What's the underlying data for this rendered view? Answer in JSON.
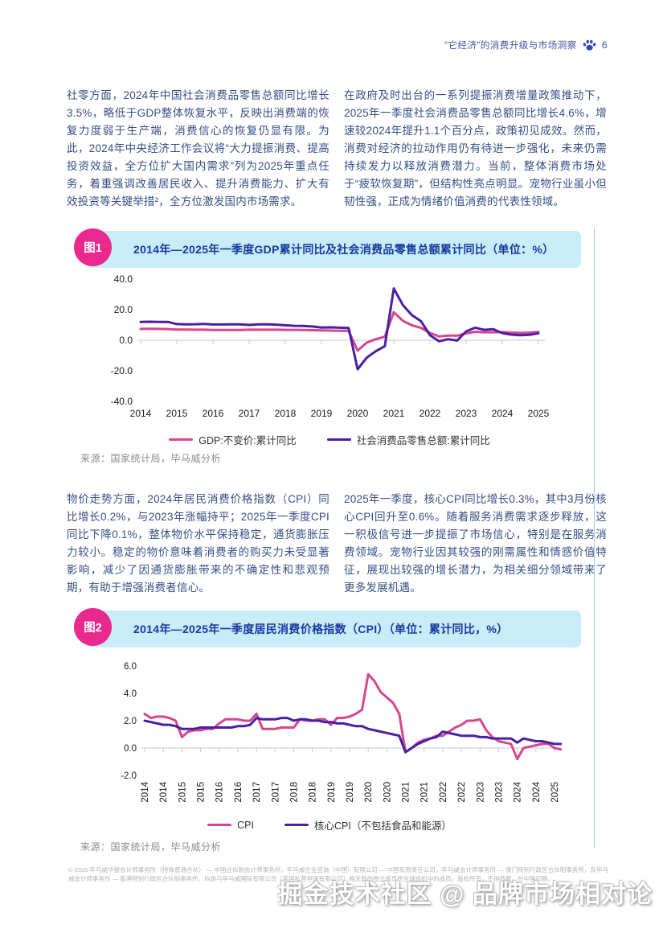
{
  "header": {
    "title": "“它经济”的消费升级与市场洞察",
    "page_number": "6"
  },
  "section1": {
    "left": "社零方面，2024年中国社会消费品零售总额同比增长3.5%，略低于GDP整体恢复水平，反映出消费端的恢复力度弱于生产端，消费信心的恢复仍显有限。为此，2024年中央经济工作会议将“大力提振消费、提高投资效益，全方位扩大国内需求”列为2025年重点任务，着重强调改善居民收入、提升消费能力、扩大有效投资等关键举措²，全方位激发国内市场需求。",
    "right": "在政府及时出台的一系列提振消费增量政策推动下，2025年一季度社会消费品零售总额同比增长4.6%，增速较2024年提升1.1个百分点，政策初见成效。然而，消费对经济的拉动作用仍有待进一步强化，未来仍需持续发力以释放消费潜力。当前，整体消费市场处于“疲软恢复期”，但结构性亮点明显。宠物行业虽小但韧性强，正成为情绪价值消费的代表性领域。"
  },
  "section2": {
    "left": "物价走势方面，2024年居民消费价格指数（CPI）同比增长0.2%，与2023年涨幅持平；2025年一季度CPI同比下降0.1%，整体物价水平保持稳定，通货膨胀压力较小。稳定的物价意味着消费者的购买力未受显著影响，减少了因通货膨胀带来的不确定性和悲观预期，有助于增强消费者信心。",
    "right": "2025年一季度，核心CPI同比增长0.3%，其中3月份核心CPI回升至0.6%。随着服务消费需求逐步释放，这一积极信号进一步提振了市场信心，特别是在服务消费领域。宠物行业因其较强的刚需属性和情感价值特征，展现出较强的增长潜力，为相关细分领域带来了更多发展机遇。"
  },
  "figure1": {
    "badge": "图1",
    "title": "2014年—2025年一季度GDP累计同比及社会消费品零售总额累计同比（单位：%）",
    "legend": [
      {
        "label": "GDP:不变价:累计同比"
      },
      {
        "label": "社会消费品零售总额:累计同比"
      }
    ],
    "source": "来源：国家统计局，毕马威分析"
  },
  "figure2": {
    "badge": "图2",
    "title": "2014年—2025年一季度居民消费价格指数（CPI）（单位：累计同比，%）",
    "legend": [
      {
        "label": "CPI"
      },
      {
        "label": "核心CPI（不包括食品和能源）"
      }
    ],
    "source": "来源：国家统计局，毕马威分析"
  },
  "footer": {
    "text": "© 2025 毕马威华振会计师事务所（特殊普通合伙） — 中国合伙制会计师事务所，毕马威企业咨询（中国）有限公司 — 中国有限责任公司，毕马威会计师事务所 — 澳门特别行政区合伙制事务所，及毕马威会计师事务所 — 香港特别行政区合伙制事务所，均是与毕马威国际有限公司（英国私营担保有限公司）相关联的独立成员所全球组织中的成员。版权所有，不得转载。在中国印刷。"
  },
  "watermark": "掘金技术社区 @ 品牌市场相对论",
  "colors": {
    "pink_line": "#d6468f",
    "purple_line": "#4a1fa3",
    "band_bg": "#c9edf8",
    "badge_pink": "#e9298e",
    "title_blue": "#17399e",
    "axis_gray": "#c9c9c9",
    "paw_blue": "#2b48c0"
  },
  "chart_data": [
    {
      "type": "line",
      "title": "2014年—2025年一季度GDP累计同比及社会消费品零售总额累计同比",
      "unit": "%",
      "x_start": 2014,
      "x_step": 0.25,
      "x_min": 2014,
      "x_max": 2025,
      "x_tick_values": [
        2014,
        2015,
        2016,
        2017,
        2018,
        2019,
        2020,
        2021,
        2022,
        2023,
        2024,
        2025
      ],
      "x_tick_labels": [
        "2014",
        "2015",
        "2016",
        "2017",
        "2018",
        "2019",
        "2020",
        "2021",
        "2022",
        "2023",
        "2024",
        "2025"
      ],
      "y_tick_values": [
        40,
        20,
        0,
        -20,
        -40
      ],
      "y_tick_labels": [
        "40.0",
        "20.0",
        "0.0",
        "-20.0",
        "-40.0"
      ],
      "ylim": [
        -40,
        40
      ],
      "grid": false,
      "legend_position": "bottom",
      "series": [
        {
          "name": "GDP:不变价:累计同比",
          "color": "#d6468f",
          "values": [
            7.4,
            7.5,
            7.4,
            7.3,
            7.0,
            7.0,
            6.9,
            6.9,
            6.7,
            6.7,
            6.7,
            6.7,
            6.9,
            6.9,
            6.9,
            6.9,
            6.8,
            6.8,
            6.7,
            6.6,
            6.4,
            6.3,
            6.2,
            6.1,
            -6.8,
            -1.6,
            0.7,
            2.3,
            18.3,
            12.7,
            9.8,
            8.1,
            4.8,
            2.5,
            3.0,
            3.0,
            4.5,
            5.5,
            5.2,
            5.2,
            5.3,
            5.0,
            4.8,
            5.0,
            5.4
          ]
        },
        {
          "name": "社会消费品零售总额:累计同比",
          "color": "#4a1fa3",
          "values": [
            12.0,
            12.1,
            12.0,
            12.0,
            10.6,
            10.4,
            10.5,
            10.7,
            10.3,
            10.3,
            10.4,
            10.4,
            10.0,
            10.4,
            10.4,
            10.2,
            9.8,
            9.4,
            9.3,
            9.0,
            8.3,
            8.4,
            8.2,
            8.0,
            -19.0,
            -11.4,
            -7.2,
            -3.9,
            33.9,
            23.0,
            16.4,
            12.5,
            3.3,
            -0.7,
            0.7,
            -0.2,
            5.8,
            8.2,
            6.8,
            7.2,
            4.7,
            3.7,
            3.3,
            3.5,
            4.6
          ]
        }
      ]
    },
    {
      "type": "line",
      "title": "2014年—2025年一季度居民消费价格指数（CPI）",
      "unit": "累计同比，%",
      "x_start": 2014,
      "x_step": 0.166667,
      "x_min": 2014,
      "x_max": 2025,
      "x_tick_values": [
        2014,
        2014.5,
        2015,
        2015.5,
        2016,
        2016.5,
        2017,
        2017.5,
        2018,
        2018.5,
        2019,
        2019.5,
        2020,
        2020.5,
        2021,
        2021.5,
        2022,
        2022.5,
        2023,
        2023.5,
        2024,
        2024.5,
        2025
      ],
      "x_tick_labels": [
        "2014",
        "2014",
        "2015",
        "2015",
        "2016",
        "2016",
        "2017",
        "2017",
        "2018",
        "2018",
        "2019",
        "2019",
        "2020",
        "2020",
        "2021",
        "2021",
        "2022",
        "2022",
        "2023",
        "2023",
        "2024",
        "2024",
        "2025"
      ],
      "y_tick_values": [
        6,
        4,
        2,
        0,
        -2
      ],
      "y_tick_labels": [
        "6.0",
        "4.0",
        "2.0",
        "0.0",
        "-2.0"
      ],
      "ylim": [
        -2,
        6
      ],
      "grid": false,
      "legend_position": "bottom",
      "series": [
        {
          "name": "CPI",
          "color": "#d6468f",
          "values": [
            2.5,
            2.2,
            2.3,
            2.3,
            2.2,
            2.0,
            0.8,
            1.2,
            1.3,
            1.3,
            1.4,
            1.4,
            1.8,
            2.1,
            2.1,
            2.1,
            2.0,
            2.0,
            2.5,
            1.4,
            1.4,
            1.4,
            1.5,
            1.5,
            1.5,
            2.1,
            2.0,
            2.0,
            2.1,
            2.1,
            1.7,
            2.2,
            2.2,
            2.3,
            2.5,
            2.8,
            5.4,
            4.9,
            4.1,
            3.7,
            3.3,
            2.5,
            -0.3,
            0.0,
            0.4,
            0.6,
            0.7,
            0.9,
            0.9,
            1.2,
            1.5,
            1.7,
            2.0,
            2.0,
            2.1,
            1.3,
            0.8,
            0.5,
            0.4,
            0.3,
            -0.8,
            0.0,
            0.1,
            0.2,
            0.3,
            0.3,
            0.0,
            -0.1
          ]
        },
        {
          "name": "核心CPI（不包括食品和能源）",
          "color": "#4a1fa3",
          "values": [
            2.0,
            1.9,
            1.8,
            1.7,
            1.7,
            1.6,
            1.4,
            1.4,
            1.4,
            1.5,
            1.5,
            1.5,
            1.5,
            1.5,
            1.5,
            1.6,
            1.6,
            1.7,
            2.2,
            2.1,
            2.1,
            2.1,
            2.2,
            2.2,
            2.0,
            2.1,
            2.1,
            2.0,
            2.0,
            1.9,
            1.9,
            1.8,
            1.8,
            1.7,
            1.6,
            1.6,
            1.4,
            1.3,
            1.2,
            1.1,
            1.0,
            0.9,
            -0.3,
            0.0,
            0.3,
            0.5,
            0.7,
            0.8,
            1.2,
            1.1,
            1.0,
            0.9,
            0.9,
            0.9,
            0.8,
            0.8,
            0.7,
            0.7,
            0.7,
            0.7,
            0.4,
            0.7,
            0.6,
            0.5,
            0.5,
            0.4,
            0.3,
            0.3
          ]
        }
      ]
    }
  ]
}
